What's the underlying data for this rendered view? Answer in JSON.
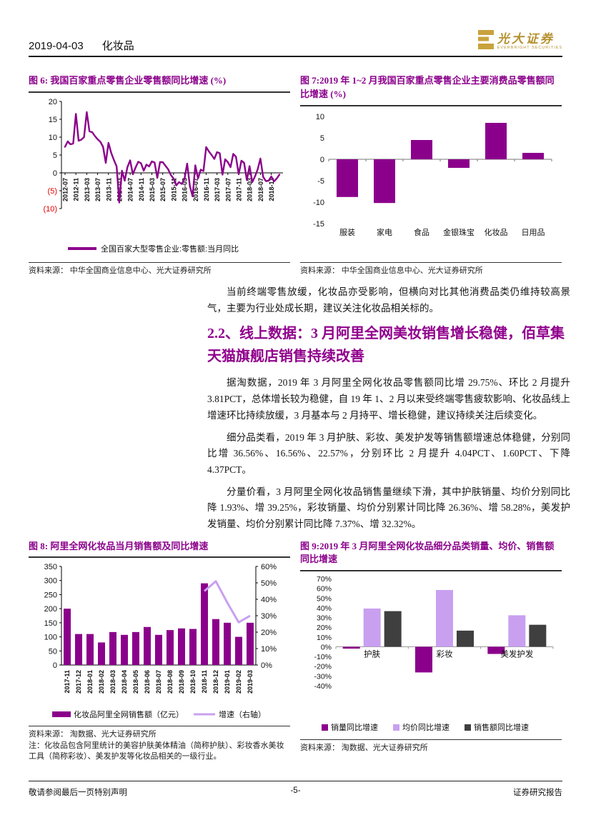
{
  "header": {
    "date": "2019-04-03",
    "category": "化妆品",
    "logo_text": "光大证券",
    "logo_subtext": "EVERBRIGHT SECURITIES"
  },
  "sections": {
    "para1": "当前终端零售放缓，化妆品亦受影响，但横向对比其他消费品类仍维持较高景气，主要为行业处成长期，建议关注化妆品相关标的。",
    "heading22": "2.2、线上数据：3 月阿里全网美妆销售增长稳健，佰草集天猫旗舰店销售持续改善",
    "para2": "据淘数据，2019 年 3 月阿里全网化妆品零售额同比增 29.75%、环比 2 月提升 3.81PCT，总体增长较为稳健，自 19 年 1、2 月以来受终端零售疲软影响、化妆品线上增速环比持续放缓，3 月基本与 2 月持平、增长稳健，建议持续关注后续变化。",
    "para3": "细分品类看，2019 年 3 月护肤、彩妆、美发护发等销售额增速总体稳健，分别同比增 36.56%、16.56%、22.57%，分别环比 2 月提升 4.04PCT、1.60PCT、下降 4.37PCT。",
    "para4": "分量价看，3 月阿里全网化妆品销售量继续下滑，其中护肤销量、均价分别同比降 1.93%、增 39.25%，彩妆销量、均价分别累计同比降 26.36%、增 58.28%，美发护发销量、均价分别累计同比降 7.37%、增 32.32%。"
  },
  "figures": {
    "fig6": {
      "title": "图 6: 我国百家重点零售企业零售额同比增速 (%)",
      "source": "资料来源： 中华全国商业信息中心、光大证券研究所"
    },
    "fig7": {
      "title": "图 7:2019 年 1~2 月我国百家重点零售企业主要消费品零售额同比增速 (%)",
      "source": "资料来源： 中华全国商业信息中心、光大证券研究所"
    },
    "fig8": {
      "title": "图 8: 阿里全网化妆品当月销售额及同比增速",
      "source": "资料来源： 淘数据、光大证券研究所",
      "note": "注：化妆品包含阿里统计的美容护肤美体精油（简称护肤）、彩妆香水美妆工具（简称彩妆）、美发护发等化妆品相关的一级行业。"
    },
    "fig9": {
      "title": "图 9:2019 年 3 月阿里全网化妆品细分品类销量、均价、销售额同比增速",
      "source": "资料来源： 淘数据、光大证券研究所"
    }
  },
  "footer": {
    "left": "敬请参阅最后一页特别声明",
    "center": "-5-",
    "right": "证券研究报告"
  },
  "colors": {
    "purple": "#8B008B",
    "light_purple": "#C9A0F0",
    "dark_gray": "#3F3F3F",
    "red": "#E60000",
    "gold": "#B5912F",
    "title_magenta": "#8B008B"
  },
  "chart_data": [
    {
      "id": "fig6",
      "type": "line",
      "title": "我国百家重点零售企业零售额同比增速 (%)",
      "series_name": "全国百家大型零售企业:零售额:当月同比",
      "ylim": [
        -10,
        20
      ],
      "yticks": [
        {
          "v": 20,
          "label": "20"
        },
        {
          "v": 15,
          "label": "15"
        },
        {
          "v": 10,
          "label": "10"
        },
        {
          "v": 5,
          "label": "5"
        },
        {
          "v": 0,
          "label": "0"
        },
        {
          "v": -5,
          "label": "(5)",
          "negative_style": true
        },
        {
          "v": -10,
          "label": "(10)",
          "negative_style": true
        }
      ],
      "x_tick_every": 4,
      "x_tick_labels": [
        "2012-07",
        "2012-11",
        "2013-03",
        "2013-07",
        "2013-11",
        "2014-03",
        "2014-07",
        "2014-11",
        "2015-03",
        "2015-07",
        "2015-11",
        "2016-03",
        "2016-07",
        "2016-11",
        "2017-03",
        "2017-07",
        "2017-11",
        "2018-03",
        "2018-07",
        "2018-11"
      ],
      "x_range_note": "monthly 2012-07 through 2019-02",
      "values": [
        7.3,
        8.8,
        8.0,
        8.2,
        16.5,
        9.0,
        9.3,
        10.0,
        17.0,
        11.6,
        11.4,
        10.3,
        9.4,
        8.7,
        7.3,
        2.8,
        8.4,
        5.6,
        3.6,
        1.8,
        -8.3,
        0.6,
        -2.2,
        1.6,
        3.5,
        -0.4,
        1.5,
        3.1,
        2.7,
        0.6,
        2.3,
        1.8,
        3.2,
        2.9,
        -1.4,
        3.0,
        3.0,
        2.0,
        1.0,
        -0.6,
        -1.6,
        -3.5,
        -2.6,
        -3.1,
        -1.8,
        2.6,
        -3.7,
        -6.6,
        2.1,
        -1.6,
        0.9,
        0.5,
        7.2,
        6.0,
        5.0,
        3.9,
        5.8,
        5.5,
        -0.5,
        3.8,
        3.0,
        1.6,
        5.3,
        4.5,
        -0.4,
        3.4,
        2.8,
        -2.0,
        1.9,
        -2.6,
        -1.0,
        1.0,
        4.0,
        -1.1,
        -2.3,
        -2.2,
        -1.0,
        -2.4,
        -1.6,
        -0.5
      ]
    },
    {
      "id": "fig7",
      "type": "bar",
      "title": "2019 年 1~2 月我国百家重点零售企业主要消费品零售额同比增速 (%)",
      "categories": [
        "服装",
        "家电",
        "食品",
        "金银珠宝",
        "化妆品",
        "日用品"
      ],
      "values": [
        -8.8,
        -10.2,
        4.5,
        -2.0,
        8.5,
        1.5
      ],
      "ylim": [
        -15,
        10
      ],
      "yticks": [
        10,
        5,
        0,
        -5,
        -10,
        -15
      ]
    },
    {
      "id": "fig8",
      "type": "combo",
      "title": "阿里全网化妆品当月销售额及同比增速",
      "categories": [
        "2017-11",
        "2017-12",
        "2018-01",
        "2018-02",
        "2018-03",
        "2018-04",
        "2018-05",
        "2018-06",
        "2018-07",
        "2018-08",
        "2018-09",
        "2018-10",
        "2018-11",
        "2018-12",
        "2019-01",
        "2019-02",
        "2019-03"
      ],
      "bar_series": {
        "name": "化妆品阿里全网销售额（亿元）",
        "values": [
          200,
          110,
          110,
          80,
          117,
          107,
          117,
          135,
          107,
          124,
          130,
          128,
          290,
          163,
          150,
          100,
          150
        ]
      },
      "line_series": {
        "name": "增速（右轴）",
        "start_index": 12,
        "values": [
          45,
          51,
          38,
          26,
          30
        ]
      },
      "ylim_left": [
        0,
        350
      ],
      "yticks_left": [
        0,
        50,
        100,
        150,
        200,
        250,
        300,
        350
      ],
      "ylim_right": [
        0,
        60
      ],
      "yticks_right": [
        0,
        10,
        20,
        30,
        40,
        50,
        60
      ]
    },
    {
      "id": "fig9",
      "type": "grouped-bar",
      "title": "2019 年 3 月阿里全网化妆品细分品类销量、均价、销售额同比增速",
      "categories": [
        "护肤",
        "彩妆",
        "美发护发"
      ],
      "series": [
        {
          "name": "销量同比增速",
          "color_key": "purple",
          "values": [
            -1.93,
            -26.36,
            -7.37
          ]
        },
        {
          "name": "均价同比增速",
          "color_key": "light_purple",
          "values": [
            39.25,
            58.28,
            32.32
          ]
        },
        {
          "name": "销售额同比增速",
          "color_key": "dark_gray",
          "values": [
            36.56,
            16.56,
            22.57
          ]
        }
      ],
      "ylim": [
        -40,
        70
      ],
      "yticks": [
        70,
        60,
        50,
        40,
        30,
        20,
        10,
        0,
        -10,
        -20,
        -30,
        -40
      ]
    }
  ]
}
